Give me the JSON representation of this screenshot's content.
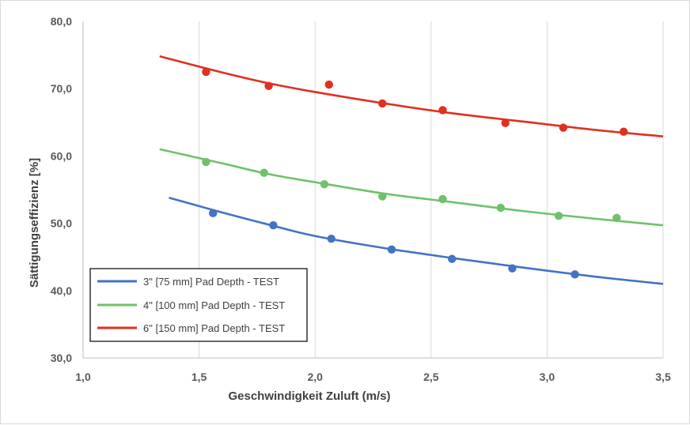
{
  "chart_data": {
    "type": "scatter",
    "title": "",
    "xlabel": "Geschwindigkeit Zuluft (m/s)",
    "ylabel": "Sättigungseffizienz [%]",
    "xlim": [
      1.0,
      3.5
    ],
    "ylim": [
      30.0,
      80.0
    ],
    "x_ticks": [
      "1,0",
      "1,5",
      "2,0",
      "2,5",
      "3,0",
      "3,5"
    ],
    "y_ticks": [
      "30,0",
      "40,0",
      "50,0",
      "60,0",
      "70,0",
      "80,0"
    ],
    "grid": "vertical",
    "legend_position": "bottom-left",
    "series": [
      {
        "name": "3\" [75 mm] Pad Depth - TEST",
        "color": "#4472c4",
        "points": [
          {
            "x": 1.56,
            "y": 51.5
          },
          {
            "x": 1.82,
            "y": 49.7
          },
          {
            "x": 2.07,
            "y": 47.7
          },
          {
            "x": 2.33,
            "y": 46.1
          },
          {
            "x": 2.59,
            "y": 44.7
          },
          {
            "x": 2.85,
            "y": 43.3
          },
          {
            "x": 3.12,
            "y": 42.4
          }
        ],
        "trend": [
          {
            "x": 1.37,
            "y": 53.8
          },
          {
            "x": 1.6,
            "y": 51.6
          },
          {
            "x": 1.8,
            "y": 49.8
          },
          {
            "x": 2.0,
            "y": 48.1
          },
          {
            "x": 2.3,
            "y": 46.3
          },
          {
            "x": 2.6,
            "y": 44.8
          },
          {
            "x": 2.9,
            "y": 43.4
          },
          {
            "x": 3.2,
            "y": 42.1
          },
          {
            "x": 3.5,
            "y": 41.0
          }
        ]
      },
      {
        "name": "4\" [100 mm] Pad Depth - TEST",
        "color": "#70c16b",
        "points": [
          {
            "x": 1.53,
            "y": 59.1
          },
          {
            "x": 1.78,
            "y": 57.5
          },
          {
            "x": 2.04,
            "y": 55.8
          },
          {
            "x": 2.29,
            "y": 54.0
          },
          {
            "x": 2.55,
            "y": 53.6
          },
          {
            "x": 2.8,
            "y": 52.3
          },
          {
            "x": 3.05,
            "y": 51.1
          },
          {
            "x": 3.3,
            "y": 50.8
          }
        ],
        "trend": [
          {
            "x": 1.33,
            "y": 61.0
          },
          {
            "x": 1.6,
            "y": 58.9
          },
          {
            "x": 1.8,
            "y": 57.3
          },
          {
            "x": 2.0,
            "y": 56.1
          },
          {
            "x": 2.3,
            "y": 54.4
          },
          {
            "x": 2.6,
            "y": 53.1
          },
          {
            "x": 2.9,
            "y": 51.8
          },
          {
            "x": 3.2,
            "y": 50.7
          },
          {
            "x": 3.5,
            "y": 49.7
          }
        ]
      },
      {
        "name": "6\" [150 mm] Pad Depth - TEST",
        "color": "#e0301e",
        "points": [
          {
            "x": 1.53,
            "y": 72.5
          },
          {
            "x": 1.8,
            "y": 70.4
          },
          {
            "x": 2.06,
            "y": 70.6
          },
          {
            "x": 2.29,
            "y": 67.8
          },
          {
            "x": 2.55,
            "y": 66.8
          },
          {
            "x": 2.82,
            "y": 64.9
          },
          {
            "x": 3.07,
            "y": 64.2
          },
          {
            "x": 3.33,
            "y": 63.6
          }
        ],
        "trend": [
          {
            "x": 1.33,
            "y": 74.8
          },
          {
            "x": 1.6,
            "y": 72.4
          },
          {
            "x": 1.8,
            "y": 70.8
          },
          {
            "x": 2.0,
            "y": 69.5
          },
          {
            "x": 2.3,
            "y": 67.8
          },
          {
            "x": 2.6,
            "y": 66.3
          },
          {
            "x": 2.9,
            "y": 65.1
          },
          {
            "x": 3.2,
            "y": 63.9
          },
          {
            "x": 3.5,
            "y": 62.9
          }
        ]
      }
    ]
  }
}
